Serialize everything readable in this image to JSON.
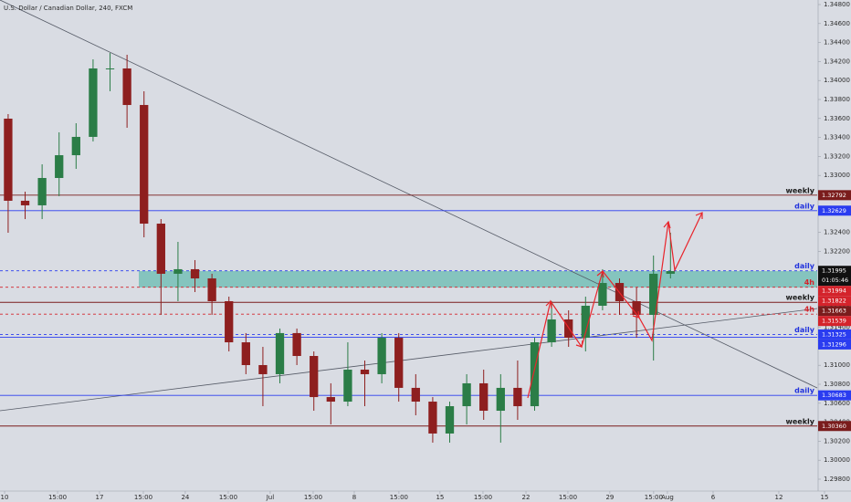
{
  "chart_data": {
    "type": "candlestick",
    "title": "U.S. Dollar / Canadian Dollar, 240, FXCM",
    "up_color": "#2b7d47",
    "down_color": "#8e1f1f",
    "x": [
      0.48,
      1.48,
      2.48,
      3.48,
      4.48,
      5.48,
      6.48,
      7.48,
      8.48,
      9.48,
      10.48,
      11.48,
      12.48,
      13.48,
      14.48,
      15.48,
      16.48,
      17.48,
      18.48,
      19.48,
      20.48,
      21.48,
      22.48,
      23.48,
      24.48,
      25.48,
      26.48,
      27.48,
      28.48,
      29.48,
      30.48,
      31.48,
      32.48,
      33.48,
      34.48,
      35.48,
      36.48,
      37.48,
      38.48,
      39.48
    ],
    "open": [
      1.33598,
      1.32733,
      1.32685,
      1.32973,
      1.33213,
      1.33406,
      1.34127,
      1.34127,
      1.33742,
      1.32492,
      1.31964,
      1.32012,
      1.31915,
      1.31675,
      1.31242,
      1.31002,
      1.30906,
      1.31339,
      1.31098,
      1.30665,
      1.30617,
      1.30954,
      1.30906,
      1.3129,
      1.30762,
      1.30617,
      1.30281,
      1.30569,
      1.3081,
      1.30521,
      1.30762,
      1.30569,
      1.31242,
      1.31483,
      1.3129,
      1.31627,
      1.31867,
      1.31675,
      1.31531,
      1.31964
    ],
    "high": [
      1.33646,
      1.32829,
      1.33117,
      1.33454,
      1.3355,
      1.34223,
      1.3429,
      1.34271,
      1.33887,
      1.3254,
      1.323,
      1.32108,
      1.31964,
      1.31723,
      1.31339,
      1.31194,
      1.31387,
      1.31387,
      1.31146,
      1.3081,
      1.31242,
      1.3105,
      1.31339,
      1.31339,
      1.30906,
      1.30665,
      1.30617,
      1.30906,
      1.30954,
      1.30906,
      1.3105,
      1.3129,
      1.31675,
      1.31579,
      1.31723,
      1.32012,
      1.31915,
      1.31819,
      1.32156,
      1.32396
    ],
    "low": [
      1.32396,
      1.3254,
      1.3254,
      1.32781,
      1.33069,
      1.33358,
      1.33887,
      1.33502,
      1.32348,
      1.31531,
      1.31675,
      1.31771,
      1.31531,
      1.31146,
      1.30906,
      1.30569,
      1.3081,
      1.31002,
      1.30521,
      1.30377,
      1.30569,
      1.30569,
      1.3081,
      1.30617,
      1.30473,
      1.30185,
      1.30185,
      1.30377,
      1.30425,
      1.30185,
      1.30425,
      1.30521,
      1.31194,
      1.31194,
      1.31146,
      1.31579,
      1.31531,
      1.3129,
      1.3105,
      1.31915
    ],
    "close": [
      1.32733,
      1.32685,
      1.32973,
      1.33213,
      1.33406,
      1.34127,
      1.34127,
      1.33742,
      1.32492,
      1.31964,
      1.32012,
      1.31915,
      1.31675,
      1.31242,
      1.31002,
      1.30906,
      1.31339,
      1.31098,
      1.30665,
      1.30617,
      1.30954,
      1.30906,
      1.3129,
      1.30762,
      1.30617,
      1.30281,
      1.30569,
      1.3081,
      1.30521,
      1.30762,
      1.30569,
      1.31242,
      1.31483,
      1.3129,
      1.31627,
      1.31867,
      1.31675,
      1.31531,
      1.31964,
      1.31992
    ],
    "xlim": [
      0,
      48.12
    ],
    "xticks": [
      {
        "value": 0.27,
        "label": "10"
      },
      {
        "value": 3.39,
        "label": "15:00"
      },
      {
        "value": 5.86,
        "label": "17"
      },
      {
        "value": 8.44,
        "label": "15:00"
      },
      {
        "value": 10.91,
        "label": "24"
      },
      {
        "value": 13.44,
        "label": "15:00"
      },
      {
        "value": 15.91,
        "label": "Jul"
      },
      {
        "value": 18.44,
        "label": "15:00"
      },
      {
        "value": 20.86,
        "label": "8"
      },
      {
        "value": 23.49,
        "label": "15:00"
      },
      {
        "value": 25.91,
        "label": "15"
      },
      {
        "value": 28.44,
        "label": "15:00"
      },
      {
        "value": 30.97,
        "label": "22"
      },
      {
        "value": 33.44,
        "label": "15:00"
      },
      {
        "value": 35.91,
        "label": "29"
      },
      {
        "value": 38.49,
        "label": "15:00"
      },
      {
        "value": 39.3,
        "label": "Aug"
      },
      {
        "value": 41.99,
        "label": "6"
      },
      {
        "value": 45.86,
        "label": "12"
      },
      {
        "value": 48.55,
        "label": "15"
      }
    ],
    "ylim": [
      1.29675,
      1.34848
    ],
    "yticks": [
      {
        "value": 1.298,
        "label": "1.29800"
      },
      {
        "value": 1.3,
        "label": "1.30000"
      },
      {
        "value": 1.302,
        "label": "1.30200"
      },
      {
        "value": 1.304,
        "label": "1.30400"
      },
      {
        "value": 1.306,
        "label": "1.30600"
      },
      {
        "value": 1.308,
        "label": "1.30800"
      },
      {
        "value": 1.31,
        "label": "1.31000"
      },
      {
        "value": 1.312,
        "label": "1.31200"
      },
      {
        "value": 1.314,
        "label": "1.31400"
      },
      {
        "value": 1.316,
        "label": "1.31600"
      },
      {
        "value": 1.318,
        "label": "1.31800"
      },
      {
        "value": 1.32,
        "label": "1.32000"
      },
      {
        "value": 1.322,
        "label": "1.32200"
      },
      {
        "value": 1.324,
        "label": "1.32400"
      },
      {
        "value": 1.326,
        "label": "1.32600"
      },
      {
        "value": 1.328,
        "label": "1.32800"
      },
      {
        "value": 1.33,
        "label": "1.33000"
      },
      {
        "value": 1.332,
        "label": "1.33200"
      },
      {
        "value": 1.334,
        "label": "1.33400"
      },
      {
        "value": 1.336,
        "label": "1.33600"
      },
      {
        "value": 1.338,
        "label": "1.33800"
      },
      {
        "value": 1.34,
        "label": "1.34000"
      },
      {
        "value": 1.342,
        "label": "1.34200"
      },
      {
        "value": 1.344,
        "label": "1.34400"
      },
      {
        "value": 1.346,
        "label": "1.34600"
      },
      {
        "value": 1.348,
        "label": "1.34800"
      }
    ],
    "levels": [
      {
        "value": 1.32792,
        "text": "weekly",
        "text_color": "#1a1a1a",
        "line_color": "#7a1c1c",
        "dash": false,
        "tag_color": "#7a1c1c"
      },
      {
        "value": 1.32629,
        "text": "daily",
        "text_color": "#2233dd",
        "line_color": "#2a3cf0",
        "dash": false,
        "tag_color": "#2a3cf0"
      },
      {
        "value": 1.31995,
        "text": "daily",
        "text_color": "#2233dd",
        "line_color": "#2a3cf0",
        "dash": true,
        "tag_color": "#111111",
        "countdown": "01:05:46"
      },
      {
        "value": 1.31994,
        "tag_color": "#d4232b"
      },
      {
        "value": 1.31822,
        "text": "4h",
        "text_color": "#d4232b",
        "line_color": "#d4232b",
        "dash": true,
        "tag_color": "#d4232b"
      },
      {
        "value": 1.31663,
        "text": "weekly",
        "text_color": "#1a1a1a",
        "line_color": "#7a1c1c",
        "dash": false,
        "tag_color": "#7a1c1c"
      },
      {
        "value": 1.31539,
        "text": "4h",
        "text_color": "#d4232b",
        "line_color": "#d4232b",
        "dash": true,
        "tag_color": "#d4232b"
      },
      {
        "value": 1.31325,
        "text": "daily",
        "text_color": "#2233dd",
        "line_color": "#2a3cf0",
        "dash": true,
        "tag_color": "#2a3cf0"
      },
      {
        "value": 1.31296,
        "line_color": "#2a3cf0",
        "dash": false,
        "tag_color": "#2a3cf0"
      },
      {
        "value": 1.30683,
        "text": "daily",
        "text_color": "#2233dd",
        "line_color": "#2a3cf0",
        "dash": false,
        "tag_color": "#2a3cf0"
      },
      {
        "value": 1.3036,
        "label": "1.30360",
        "text": "weekly",
        "text_color": "#1a1a1a",
        "line_color": "#7a1c1c",
        "dash": false,
        "tag_color": "#7a1c1c"
      }
    ]
  }
}
